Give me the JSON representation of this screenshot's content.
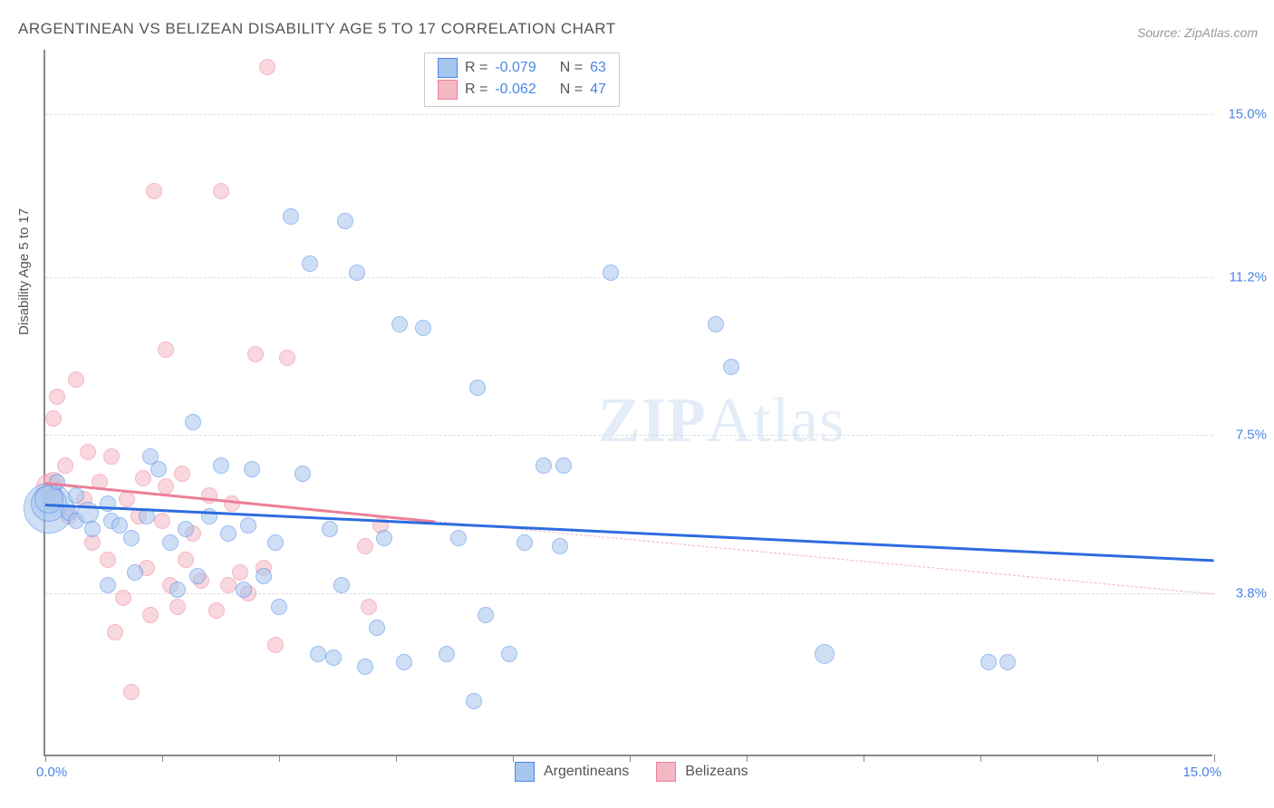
{
  "title": "ARGENTINEAN VS BELIZEAN DISABILITY AGE 5 TO 17 CORRELATION CHART",
  "source": "Source: ZipAtlas.com",
  "y_axis_title": "Disability Age 5 to 17",
  "watermark": {
    "prefix": "ZIP",
    "suffix": "Atlas"
  },
  "chart": {
    "type": "scatter",
    "background_color": "#ffffff",
    "grid_color": "#dddddd",
    "axis_color": "#888888",
    "xlim": [
      0.0,
      15.0
    ],
    "ylim": [
      0.0,
      16.5
    ],
    "x_min_label": "0.0%",
    "x_max_label": "15.0%",
    "y_ticks": [
      {
        "value": 3.8,
        "label": "3.8%"
      },
      {
        "value": 7.5,
        "label": "7.5%"
      },
      {
        "value": 11.2,
        "label": "11.2%"
      },
      {
        "value": 15.0,
        "label": "15.0%"
      }
    ],
    "x_tick_positions": [
      0,
      1.5,
      3,
      4.5,
      6,
      7.5,
      9,
      10.5,
      12,
      13.5,
      15
    ],
    "tick_label_color": "#4a86e8",
    "series": [
      {
        "name": "Argentineans",
        "fill_color": "#a7c6ed",
        "stroke_color": "#4a86e8",
        "fill_opacity": 0.55,
        "trend": {
          "x1": 0.0,
          "y1": 5.9,
          "x2": 15.0,
          "y2": 4.6,
          "color": "#2d6cdf",
          "width": 3,
          "style": "solid"
        },
        "stats": {
          "R": "-0.079",
          "N": "63"
        },
        "points": [
          {
            "x": 0.05,
            "y": 5.8,
            "r": 28
          },
          {
            "x": 0.05,
            "y": 5.9,
            "r": 20
          },
          {
            "x": 0.05,
            "y": 6.0,
            "r": 16
          },
          {
            "x": 0.15,
            "y": 6.4,
            "r": 9
          },
          {
            "x": 0.3,
            "y": 5.7,
            "r": 9
          },
          {
            "x": 0.4,
            "y": 6.1,
            "r": 9
          },
          {
            "x": 0.4,
            "y": 5.5,
            "r": 9
          },
          {
            "x": 0.55,
            "y": 5.7,
            "r": 12
          },
          {
            "x": 0.8,
            "y": 5.9,
            "r": 9
          },
          {
            "x": 0.85,
            "y": 5.5,
            "r": 9
          },
          {
            "x": 0.6,
            "y": 5.3,
            "r": 9
          },
          {
            "x": 0.95,
            "y": 5.4,
            "r": 9
          },
          {
            "x": 0.8,
            "y": 4.0,
            "r": 9
          },
          {
            "x": 1.1,
            "y": 5.1,
            "r": 9
          },
          {
            "x": 1.3,
            "y": 5.6,
            "r": 9
          },
          {
            "x": 1.15,
            "y": 4.3,
            "r": 9
          },
          {
            "x": 1.45,
            "y": 6.7,
            "r": 9
          },
          {
            "x": 1.35,
            "y": 7.0,
            "r": 9
          },
          {
            "x": 1.6,
            "y": 5.0,
            "r": 9
          },
          {
            "x": 1.7,
            "y": 3.9,
            "r": 9
          },
          {
            "x": 1.8,
            "y": 5.3,
            "r": 9
          },
          {
            "x": 1.9,
            "y": 7.8,
            "r": 9
          },
          {
            "x": 1.95,
            "y": 4.2,
            "r": 9
          },
          {
            "x": 2.1,
            "y": 5.6,
            "r": 9
          },
          {
            "x": 2.25,
            "y": 6.8,
            "r": 9
          },
          {
            "x": 2.35,
            "y": 5.2,
            "r": 9
          },
          {
            "x": 2.55,
            "y": 3.9,
            "r": 9
          },
          {
            "x": 2.6,
            "y": 5.4,
            "r": 9
          },
          {
            "x": 2.65,
            "y": 6.7,
            "r": 9
          },
          {
            "x": 2.8,
            "y": 4.2,
            "r": 9
          },
          {
            "x": 2.95,
            "y": 5.0,
            "r": 9
          },
          {
            "x": 3.0,
            "y": 3.5,
            "r": 9
          },
          {
            "x": 3.15,
            "y": 12.6,
            "r": 9
          },
          {
            "x": 3.3,
            "y": 6.6,
            "r": 9
          },
          {
            "x": 3.4,
            "y": 11.5,
            "r": 9
          },
          {
            "x": 3.65,
            "y": 5.3,
            "r": 9
          },
          {
            "x": 3.7,
            "y": 2.3,
            "r": 9
          },
          {
            "x": 3.8,
            "y": 4.0,
            "r": 9
          },
          {
            "x": 3.85,
            "y": 12.5,
            "r": 9
          },
          {
            "x": 4.0,
            "y": 11.3,
            "r": 9
          },
          {
            "x": 4.1,
            "y": 2.1,
            "r": 9
          },
          {
            "x": 4.25,
            "y": 3.0,
            "r": 9
          },
          {
            "x": 4.35,
            "y": 5.1,
            "r": 9
          },
          {
            "x": 4.55,
            "y": 10.1,
            "r": 9
          },
          {
            "x": 4.6,
            "y": 2.2,
            "r": 9
          },
          {
            "x": 4.85,
            "y": 10.0,
            "r": 9
          },
          {
            "x": 5.15,
            "y": 2.4,
            "r": 9
          },
          {
            "x": 5.3,
            "y": 5.1,
            "r": 9
          },
          {
            "x": 5.5,
            "y": 1.3,
            "r": 9
          },
          {
            "x": 5.55,
            "y": 8.6,
            "r": 9
          },
          {
            "x": 5.65,
            "y": 3.3,
            "r": 9
          },
          {
            "x": 5.95,
            "y": 2.4,
            "r": 9
          },
          {
            "x": 6.15,
            "y": 5.0,
            "r": 9
          },
          {
            "x": 6.4,
            "y": 6.8,
            "r": 9
          },
          {
            "x": 6.6,
            "y": 4.9,
            "r": 9
          },
          {
            "x": 6.65,
            "y": 6.8,
            "r": 9
          },
          {
            "x": 7.25,
            "y": 11.3,
            "r": 9
          },
          {
            "x": 8.6,
            "y": 10.1,
            "r": 9
          },
          {
            "x": 8.8,
            "y": 9.1,
            "r": 9
          },
          {
            "x": 10.0,
            "y": 2.4,
            "r": 11
          },
          {
            "x": 12.1,
            "y": 2.2,
            "r": 9
          },
          {
            "x": 12.35,
            "y": 2.2,
            "r": 9
          },
          {
            "x": 3.5,
            "y": 2.4,
            "r": 9
          }
        ]
      },
      {
        "name": "Belizeans",
        "fill_color": "#f4b7c4",
        "stroke_color": "#ec7f98",
        "fill_opacity": 0.55,
        "trend_solid": {
          "x1": 0.0,
          "y1": 6.4,
          "x2": 5.0,
          "y2": 5.5,
          "color": "#ec7f98",
          "width": 3,
          "style": "solid"
        },
        "trend_dashed": {
          "x1": 5.0,
          "y1": 5.5,
          "x2": 15.0,
          "y2": 3.8,
          "color": "#f0b3c0",
          "width": 1.5,
          "style": "dashed"
        },
        "stats": {
          "R": "-0.062",
          "N": "47"
        },
        "points": [
          {
            "x": 0.05,
            "y": 6.3,
            "r": 14
          },
          {
            "x": 0.1,
            "y": 6.0,
            "r": 11
          },
          {
            "x": 0.1,
            "y": 6.4,
            "r": 11
          },
          {
            "x": 0.1,
            "y": 7.9,
            "r": 9
          },
          {
            "x": 0.15,
            "y": 8.4,
            "r": 9
          },
          {
            "x": 0.25,
            "y": 6.8,
            "r": 9
          },
          {
            "x": 0.3,
            "y": 5.6,
            "r": 9
          },
          {
            "x": 0.4,
            "y": 8.8,
            "r": 9
          },
          {
            "x": 0.5,
            "y": 6.0,
            "r": 9
          },
          {
            "x": 0.55,
            "y": 7.1,
            "r": 9
          },
          {
            "x": 0.6,
            "y": 5.0,
            "r": 9
          },
          {
            "x": 0.7,
            "y": 6.4,
            "r": 9
          },
          {
            "x": 0.8,
            "y": 4.6,
            "r": 9
          },
          {
            "x": 0.85,
            "y": 7.0,
            "r": 9
          },
          {
            "x": 0.9,
            "y": 2.9,
            "r": 9
          },
          {
            "x": 1.0,
            "y": 3.7,
            "r": 9
          },
          {
            "x": 1.05,
            "y": 6.0,
            "r": 9
          },
          {
            "x": 1.1,
            "y": 1.5,
            "r": 9
          },
          {
            "x": 1.2,
            "y": 5.6,
            "r": 9
          },
          {
            "x": 1.25,
            "y": 6.5,
            "r": 9
          },
          {
            "x": 1.3,
            "y": 4.4,
            "r": 9
          },
          {
            "x": 1.35,
            "y": 3.3,
            "r": 9
          },
          {
            "x": 1.4,
            "y": 13.2,
            "r": 9
          },
          {
            "x": 1.5,
            "y": 5.5,
            "r": 9
          },
          {
            "x": 1.55,
            "y": 6.3,
            "r": 9
          },
          {
            "x": 1.6,
            "y": 4.0,
            "r": 9
          },
          {
            "x": 1.7,
            "y": 3.5,
            "r": 9
          },
          {
            "x": 1.75,
            "y": 6.6,
            "r": 9
          },
          {
            "x": 1.8,
            "y": 4.6,
            "r": 9
          },
          {
            "x": 1.9,
            "y": 5.2,
            "r": 9
          },
          {
            "x": 1.55,
            "y": 9.5,
            "r": 9
          },
          {
            "x": 2.0,
            "y": 4.1,
            "r": 9
          },
          {
            "x": 2.1,
            "y": 6.1,
            "r": 9
          },
          {
            "x": 2.2,
            "y": 3.4,
            "r": 9
          },
          {
            "x": 2.25,
            "y": 13.2,
            "r": 9
          },
          {
            "x": 2.35,
            "y": 4.0,
            "r": 9
          },
          {
            "x": 2.4,
            "y": 5.9,
            "r": 9
          },
          {
            "x": 2.5,
            "y": 4.3,
            "r": 9
          },
          {
            "x": 2.6,
            "y": 3.8,
            "r": 9
          },
          {
            "x": 2.7,
            "y": 9.4,
            "r": 9
          },
          {
            "x": 2.8,
            "y": 4.4,
            "r": 9
          },
          {
            "x": 2.85,
            "y": 16.1,
            "r": 9
          },
          {
            "x": 2.95,
            "y": 2.6,
            "r": 9
          },
          {
            "x": 3.1,
            "y": 9.3,
            "r": 9
          },
          {
            "x": 4.1,
            "y": 4.9,
            "r": 9
          },
          {
            "x": 4.15,
            "y": 3.5,
            "r": 9
          },
          {
            "x": 4.3,
            "y": 5.4,
            "r": 9
          }
        ]
      }
    ]
  },
  "stat_box": {
    "rows": [
      {
        "swatch_fill": "#a7c6ed",
        "swatch_stroke": "#4a86e8",
        "R_label": "R =",
        "R": "-0.079",
        "N_label": "N =",
        "N": "63"
      },
      {
        "swatch_fill": "#f4b7c4",
        "swatch_stroke": "#ec7f98",
        "R_label": "R =",
        "R": "-0.062",
        "N_label": "N =",
        "N": "47"
      }
    ]
  },
  "legend": [
    {
      "swatch_fill": "#a7c6ed",
      "swatch_stroke": "#4a86e8",
      "label": "Argentineans"
    },
    {
      "swatch_fill": "#f4b7c4",
      "swatch_stroke": "#ec7f98",
      "label": "Belizeans"
    }
  ]
}
